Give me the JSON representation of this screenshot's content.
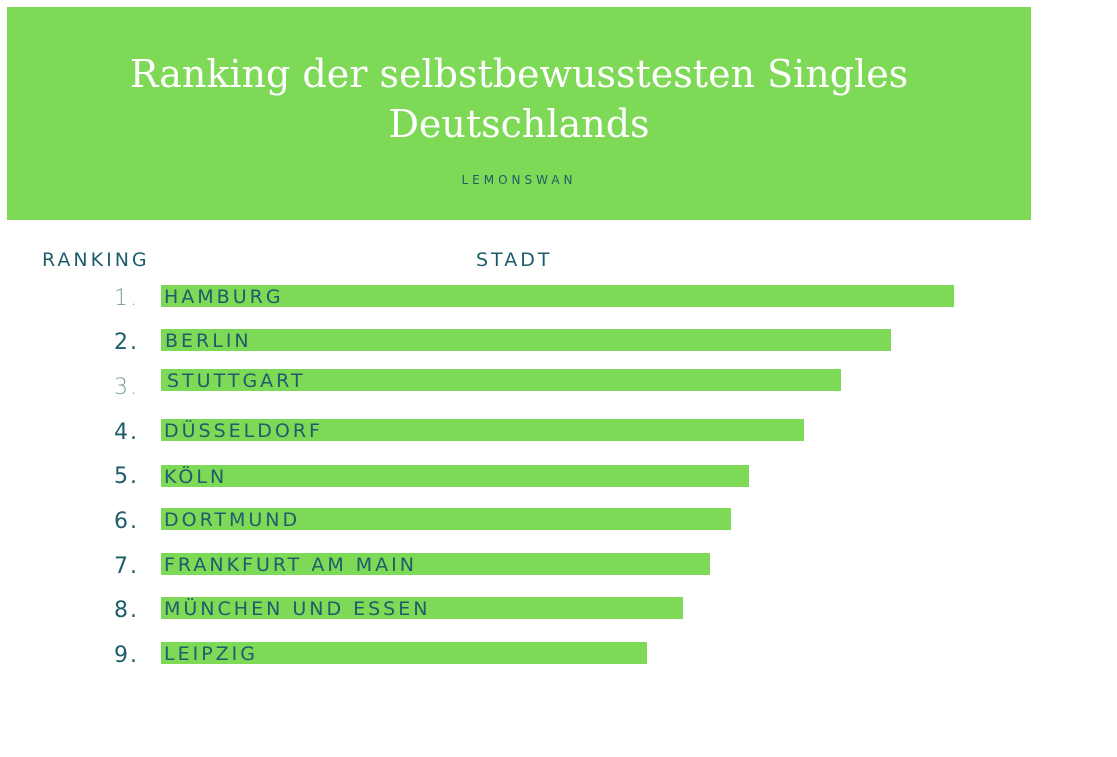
{
  "header": {
    "title_lines": [
      "Ranking der selbstbewusstesten Singles",
      "Deutschlands"
    ],
    "subtitle": "LEMONSWAN"
  },
  "columns": [
    "RANKING",
    "STADT"
  ],
  "rows": [
    {
      "rank": "1.",
      "city": "HAMBURG"
    },
    {
      "rank": "2.",
      "city": "BERLIN"
    },
    {
      "rank": "3.",
      "city": "STUTTGART"
    },
    {
      "rank": "4.",
      "city": "DÜSSELDORF"
    },
    {
      "rank": "5.",
      "city": "KÖLN"
    },
    {
      "rank": "6.",
      "city": "DORTMUND"
    },
    {
      "rank": "7.",
      "city": "FRANKFURT AM MAIN"
    },
    {
      "rank": "8.",
      "city": "MÜNCHEN UND ESSEN"
    },
    {
      "rank": "9.",
      "city": "LEIPZIG"
    }
  ]
}
